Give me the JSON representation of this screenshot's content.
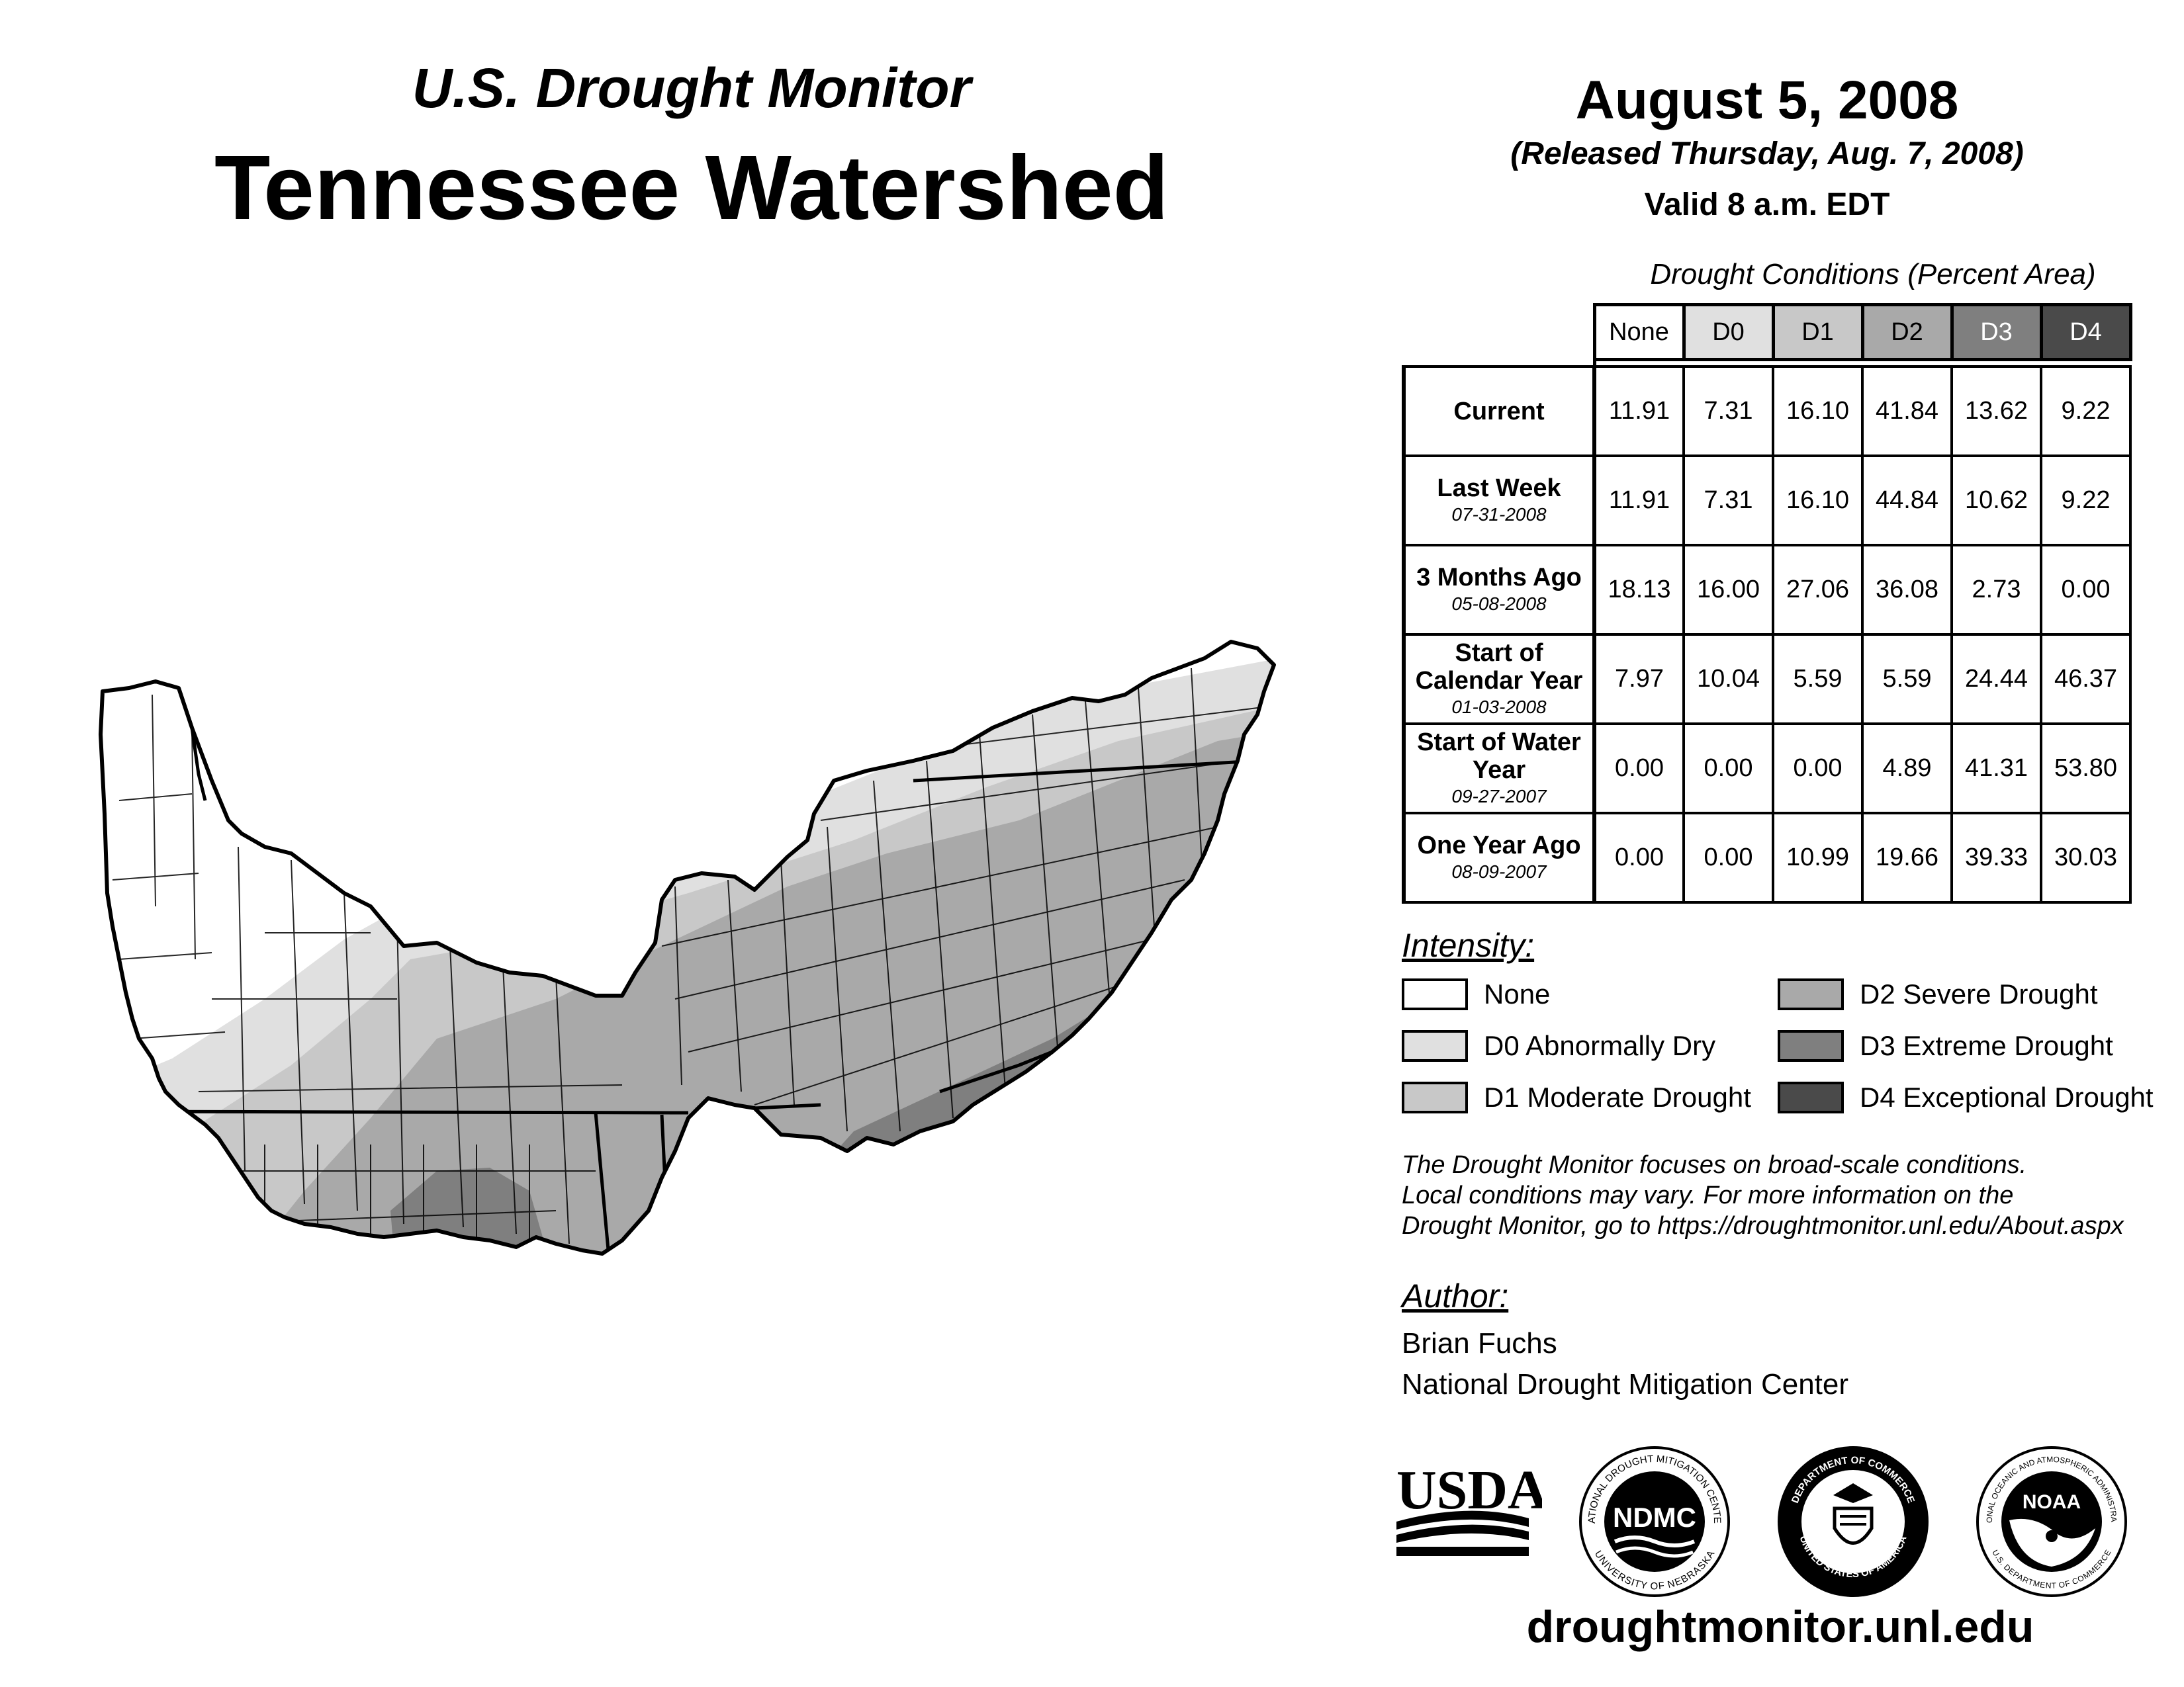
{
  "header": {
    "subtitle": "U.S. Drought Monitor",
    "title": "Tennessee Watershed",
    "date": "August 5, 2008",
    "released": "(Released Thursday, Aug. 7, 2008)",
    "valid": "Valid 8 a.m. EDT"
  },
  "table": {
    "caption": "Drought Conditions (Percent Area)",
    "columns": [
      "None",
      "D0",
      "D1",
      "D2",
      "D3",
      "D4"
    ],
    "rows": [
      {
        "label": "Current",
        "date": "",
        "values": [
          "11.91",
          "7.31",
          "16.10",
          "41.84",
          "13.62",
          "9.22"
        ]
      },
      {
        "label": "Last Week",
        "date": "07-31-2008",
        "values": [
          "11.91",
          "7.31",
          "16.10",
          "44.84",
          "10.62",
          "9.22"
        ]
      },
      {
        "label": "3 Months Ago",
        "date": "05-08-2008",
        "values": [
          "18.13",
          "16.00",
          "27.06",
          "36.08",
          "2.73",
          "0.00"
        ]
      },
      {
        "label": "Start of Calendar Year",
        "date": "01-03-2008",
        "values": [
          "7.97",
          "10.04",
          "5.59",
          "5.59",
          "24.44",
          "46.37"
        ]
      },
      {
        "label": "Start of Water Year",
        "date": "09-27-2007",
        "values": [
          "0.00",
          "0.00",
          "0.00",
          "4.89",
          "41.31",
          "53.80"
        ]
      },
      {
        "label": "One Year Ago",
        "date": "08-09-2007",
        "values": [
          "0.00",
          "0.00",
          "10.99",
          "19.66",
          "39.33",
          "30.03"
        ]
      }
    ]
  },
  "legend": {
    "heading": "Intensity:",
    "items": [
      {
        "label": "None",
        "color": "#ffffff"
      },
      {
        "label": "D0 Abnormally Dry",
        "color": "#e0e0e0"
      },
      {
        "label": "D1 Moderate Drought",
        "color": "#c8c8c8"
      },
      {
        "label": "D2 Severe Drought",
        "color": "#a9a9a9"
      },
      {
        "label": "D3 Extreme Drought",
        "color": "#7f7f7f"
      },
      {
        "label": "D4 Exceptional Drought",
        "color": "#4a4a4a"
      }
    ]
  },
  "note": {
    "line1": "The Drought Monitor focuses on broad-scale conditions.",
    "line2": "Local conditions may vary. For more information on the",
    "line3": "Drought Monitor, go to https://droughtmonitor.unl.edu/About.aspx"
  },
  "author": {
    "heading": "Author:",
    "name": "Brian Fuchs",
    "org": "National Drought Mitigation Center"
  },
  "logos": {
    "usda": "USDA",
    "ndmc": "NDMC",
    "ndmc_ring_top": "NATIONAL DROUGHT MITIGATION CENTER",
    "ndmc_ring_bottom": "UNIVERSITY OF NEBRASKA",
    "commerce_ring_top": "DEPARTMENT OF COMMERCE",
    "commerce_ring_bottom": "UNITED STATES OF AMERICA",
    "noaa": "NOAA",
    "noaa_ring_top": "NATIONAL OCEANIC AND ATMOSPHERIC ADMINISTRATION",
    "noaa_ring_bottom": "U.S. DEPARTMENT OF COMMERCE"
  },
  "website": "droughtmonitor.unl.edu"
}
